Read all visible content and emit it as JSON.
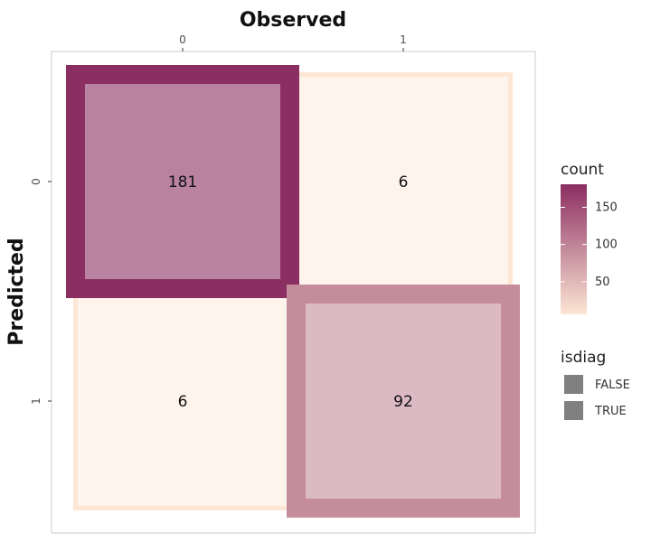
{
  "chart_data": {
    "type": "heatmap",
    "xlabel": "Observed",
    "ylabel": "Predicted",
    "x_categories": [
      "0",
      "1"
    ],
    "y_categories": [
      "0",
      "1"
    ],
    "x_axis_position": "top",
    "y_axis_reversed": true,
    "cells": [
      {
        "observed": "0",
        "predicted": "0",
        "count": 181,
        "label": "181",
        "isdiag": true
      },
      {
        "observed": "1",
        "predicted": "0",
        "count": 6,
        "label": "6",
        "isdiag": false
      },
      {
        "observed": "0",
        "predicted": "1",
        "count": 6,
        "label": "6",
        "isdiag": false
      },
      {
        "observed": "1",
        "predicted": "1",
        "count": 92,
        "label": "92",
        "isdiag": true
      }
    ],
    "color_scale": {
      "title": "count",
      "low": "#fde6d4",
      "high": "#8b2e62",
      "domain": [
        6,
        181
      ],
      "breaks": [
        50,
        100,
        150
      ],
      "break_labels": [
        "50",
        "100",
        "150"
      ]
    },
    "shape_legend": {
      "title": "isdiag",
      "entries": [
        "FALSE",
        "TRUE"
      ],
      "key_color": "#808080"
    },
    "grid": false,
    "panel_border": "#cccccc",
    "legend_position": "right"
  }
}
